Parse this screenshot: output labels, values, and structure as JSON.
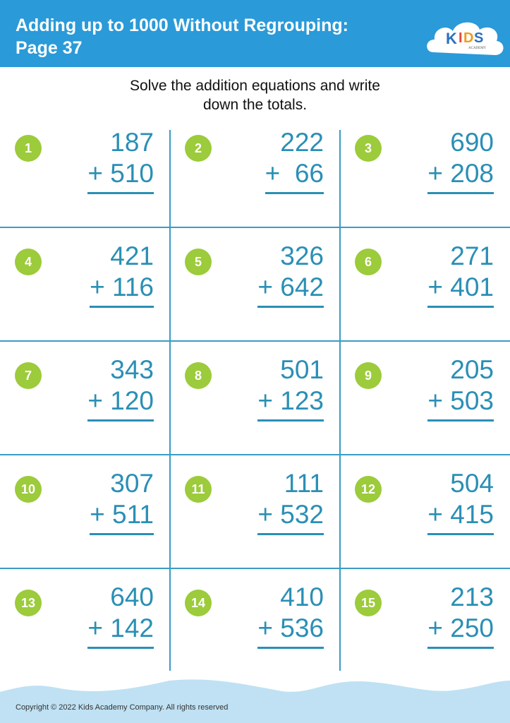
{
  "header": {
    "title_line1": "Adding up to 1000 Without Regrouping:",
    "title_line2": "Page 37",
    "logo_text": "KIDS",
    "logo_sub": "ACADEMY"
  },
  "instructions": {
    "line1": "Solve the addition equations and write",
    "line2": "down the totals."
  },
  "colors": {
    "header": "#2a9ad8",
    "badge": "#9ccb3b",
    "numbers": "#2a8fb5",
    "wave": "#bfe1f3"
  },
  "problems": [
    {
      "n": "1",
      "a": "187",
      "b": "+ 510"
    },
    {
      "n": "2",
      "a": "222",
      "b": "+  66"
    },
    {
      "n": "3",
      "a": "690",
      "b": "+ 208"
    },
    {
      "n": "4",
      "a": "421",
      "b": "+ 116"
    },
    {
      "n": "5",
      "a": "326",
      "b": "+ 642"
    },
    {
      "n": "6",
      "a": "271",
      "b": "+ 401"
    },
    {
      "n": "7",
      "a": "343",
      "b": "+ 120"
    },
    {
      "n": "8",
      "a": "501",
      "b": "+ 123"
    },
    {
      "n": "9",
      "a": "205",
      "b": "+ 503"
    },
    {
      "n": "10",
      "a": "307",
      "b": "+ 511"
    },
    {
      "n": "11",
      "a": "111",
      "b": "+ 532"
    },
    {
      "n": "12",
      "a": "504",
      "b": "+ 415"
    },
    {
      "n": "13",
      "a": "640",
      "b": "+ 142"
    },
    {
      "n": "14",
      "a": "410",
      "b": "+ 536"
    },
    {
      "n": "15",
      "a": "213",
      "b": "+ 250"
    }
  ],
  "footer": {
    "copyright": "Copyright © 2022 Kids Academy Company. All rights reserved"
  }
}
